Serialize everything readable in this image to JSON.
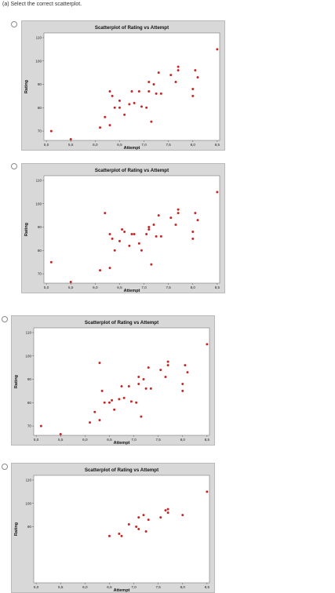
{
  "question": "(a) Select the correct scatterplot.",
  "options": [
    {
      "chart_data": {
        "type": "scatter",
        "title": "Scatterplot of Rating vs Attempt",
        "xlabel": "Attempt",
        "ylabel": "Rating",
        "xlim": [
          4.95,
          8.55
        ],
        "ylim": [
          66,
          112
        ],
        "xticks": [
          "5,0",
          "5,5",
          "6,0",
          "6,5",
          "7,0",
          "7,5",
          "8,0",
          "8,5"
        ],
        "yticks": [
          "70",
          "80",
          "90",
          "100",
          "110"
        ],
        "x": [
          5.1,
          5.5,
          6.1,
          6.2,
          6.3,
          6.3,
          6.35,
          6.4,
          6.5,
          6.5,
          6.6,
          6.7,
          6.75,
          6.8,
          6.9,
          6.95,
          7.05,
          7.1,
          7.1,
          7.15,
          7.2,
          7.25,
          7.3,
          7.35,
          7.55,
          7.65,
          7.7,
          7.7,
          8.0,
          8.0,
          8.05,
          8.1,
          8.5
        ],
        "y": [
          70,
          66.5,
          71.5,
          76,
          87,
          72.5,
          85,
          80,
          80,
          83,
          77,
          81.5,
          87,
          82,
          87,
          80.5,
          80,
          87,
          91,
          74,
          90,
          86,
          95,
          86,
          94,
          91,
          96,
          97.5,
          85,
          88,
          96,
          93,
          105
        ],
        "color": "#c62828"
      }
    },
    {
      "chart_data": {
        "type": "scatter",
        "title": "Scatterplot of Rating vs Attempt",
        "xlabel": "Attempt",
        "ylabel": "Rating",
        "xlim": [
          4.95,
          8.55
        ],
        "ylim": [
          66,
          112
        ],
        "xticks": [
          "5,0",
          "5,5",
          "6,0",
          "6,5",
          "7,0",
          "7,5",
          "8,0",
          "8,5"
        ],
        "yticks": [
          "70",
          "80",
          "90",
          "100",
          "110"
        ],
        "x": [
          5.1,
          5.5,
          6.1,
          6.2,
          6.3,
          6.3,
          6.35,
          6.4,
          6.5,
          6.55,
          6.6,
          6.7,
          6.75,
          6.8,
          6.9,
          6.95,
          7.05,
          7.1,
          7.1,
          7.15,
          7.2,
          7.25,
          7.3,
          7.35,
          7.55,
          7.65,
          7.7,
          7.7,
          8.0,
          8.0,
          8.05,
          8.1,
          8.5
        ],
        "y": [
          75,
          66.5,
          71.5,
          96,
          87,
          72.5,
          85,
          80,
          84,
          89,
          88,
          82,
          87,
          87,
          83,
          80,
          87,
          90,
          89,
          74,
          91,
          86,
          95,
          86,
          94,
          91,
          96,
          97.5,
          85,
          88,
          96,
          93,
          105
        ],
        "color": "#c62828"
      }
    },
    {
      "chart_data": {
        "type": "scatter",
        "title": "Scatterplot of Rating vs Attempt",
        "xlabel": "Attempt",
        "ylabel": "Rating",
        "xlim": [
          4.95,
          8.55
        ],
        "ylim": [
          66,
          112
        ],
        "xticks": [
          "5,0",
          "5,5",
          "6,0",
          "6,5",
          "7,0",
          "7,5",
          "8,0",
          "8,5"
        ],
        "yticks": [
          "70",
          "80",
          "90",
          "100",
          "110"
        ],
        "x": [
          5.1,
          5.5,
          6.1,
          6.2,
          6.3,
          6.3,
          6.35,
          6.4,
          6.5,
          6.55,
          6.6,
          6.7,
          6.75,
          6.8,
          6.9,
          6.95,
          7.05,
          7.1,
          7.1,
          7.15,
          7.2,
          7.25,
          7.3,
          7.35,
          7.55,
          7.65,
          7.7,
          7.7,
          8.0,
          8.0,
          8.05,
          8.1,
          8.5
        ],
        "y": [
          70,
          66.5,
          71.5,
          76,
          97,
          72.5,
          85,
          80,
          80,
          81,
          77,
          81.5,
          87,
          82,
          87,
          80.5,
          80,
          88,
          91,
          74,
          90,
          86,
          95,
          86,
          94,
          91,
          96,
          97.5,
          85,
          88,
          96,
          93,
          105
        ],
        "color": "#c62828"
      }
    },
    {
      "chart_data": {
        "type": "scatter",
        "title": "Scatterplot of Rating vs Attempt",
        "xlabel": "Attempt",
        "ylabel": "Rating",
        "xlim": [
          4.95,
          8.55
        ],
        "ylim": [
          66,
          112
        ],
        "xticks": [
          "5,0",
          "5,5",
          "6,0",
          "6,5",
          "7,0",
          "7,5",
          "8,0",
          "8,5"
        ],
        "yticks": [
          "90",
          "100",
          "110"
        ],
        "x": [
          6.5,
          6.7,
          6.75,
          6.9,
          7.05,
          7.1,
          7.1,
          7.2,
          7.25,
          7.3,
          7.55,
          7.65,
          7.7,
          7.7,
          8.0,
          8.5
        ],
        "y": [
          86,
          87,
          86,
          91,
          90,
          94,
          89,
          95,
          88,
          93,
          94,
          97,
          96,
          97.5,
          95,
          105
        ],
        "color": "#c62828"
      }
    }
  ]
}
